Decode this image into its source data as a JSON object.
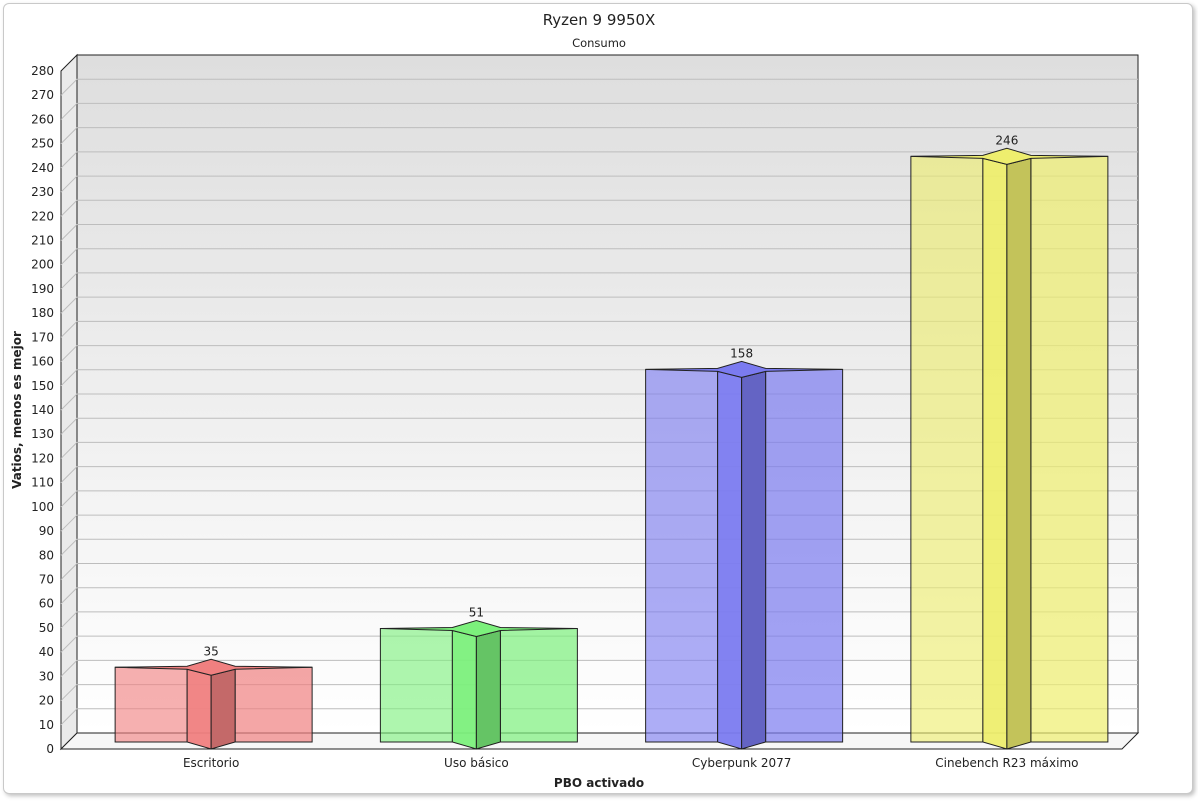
{
  "chart_data": {
    "type": "bar",
    "title": "Ryzen 9 9950X",
    "subtitle": "Consumo",
    "xlabel": "PBO activado",
    "ylabel": "Vatios, menos es mejor",
    "categories": [
      "Escritorio",
      "Uso básico",
      "Cyberpunk 2077",
      "Cinebench R23 máximo"
    ],
    "values": [
      35,
      51,
      158,
      246
    ],
    "data_labels": [
      "35",
      "51",
      "158",
      "246"
    ],
    "ylim": [
      0,
      280
    ],
    "yticks": [
      "0",
      "10",
      "20",
      "30",
      "40",
      "50",
      "60",
      "70",
      "80",
      "90",
      "100",
      "110",
      "120",
      "130",
      "140",
      "150",
      "160",
      "170",
      "180",
      "190",
      "200",
      "210",
      "220",
      "230",
      "240",
      "250",
      "260",
      "270",
      "280"
    ],
    "grid": true,
    "legend": "none",
    "colors": [
      "#f08080",
      "#7cf07c",
      "#7b7bf0",
      "#eeee6e"
    ]
  }
}
